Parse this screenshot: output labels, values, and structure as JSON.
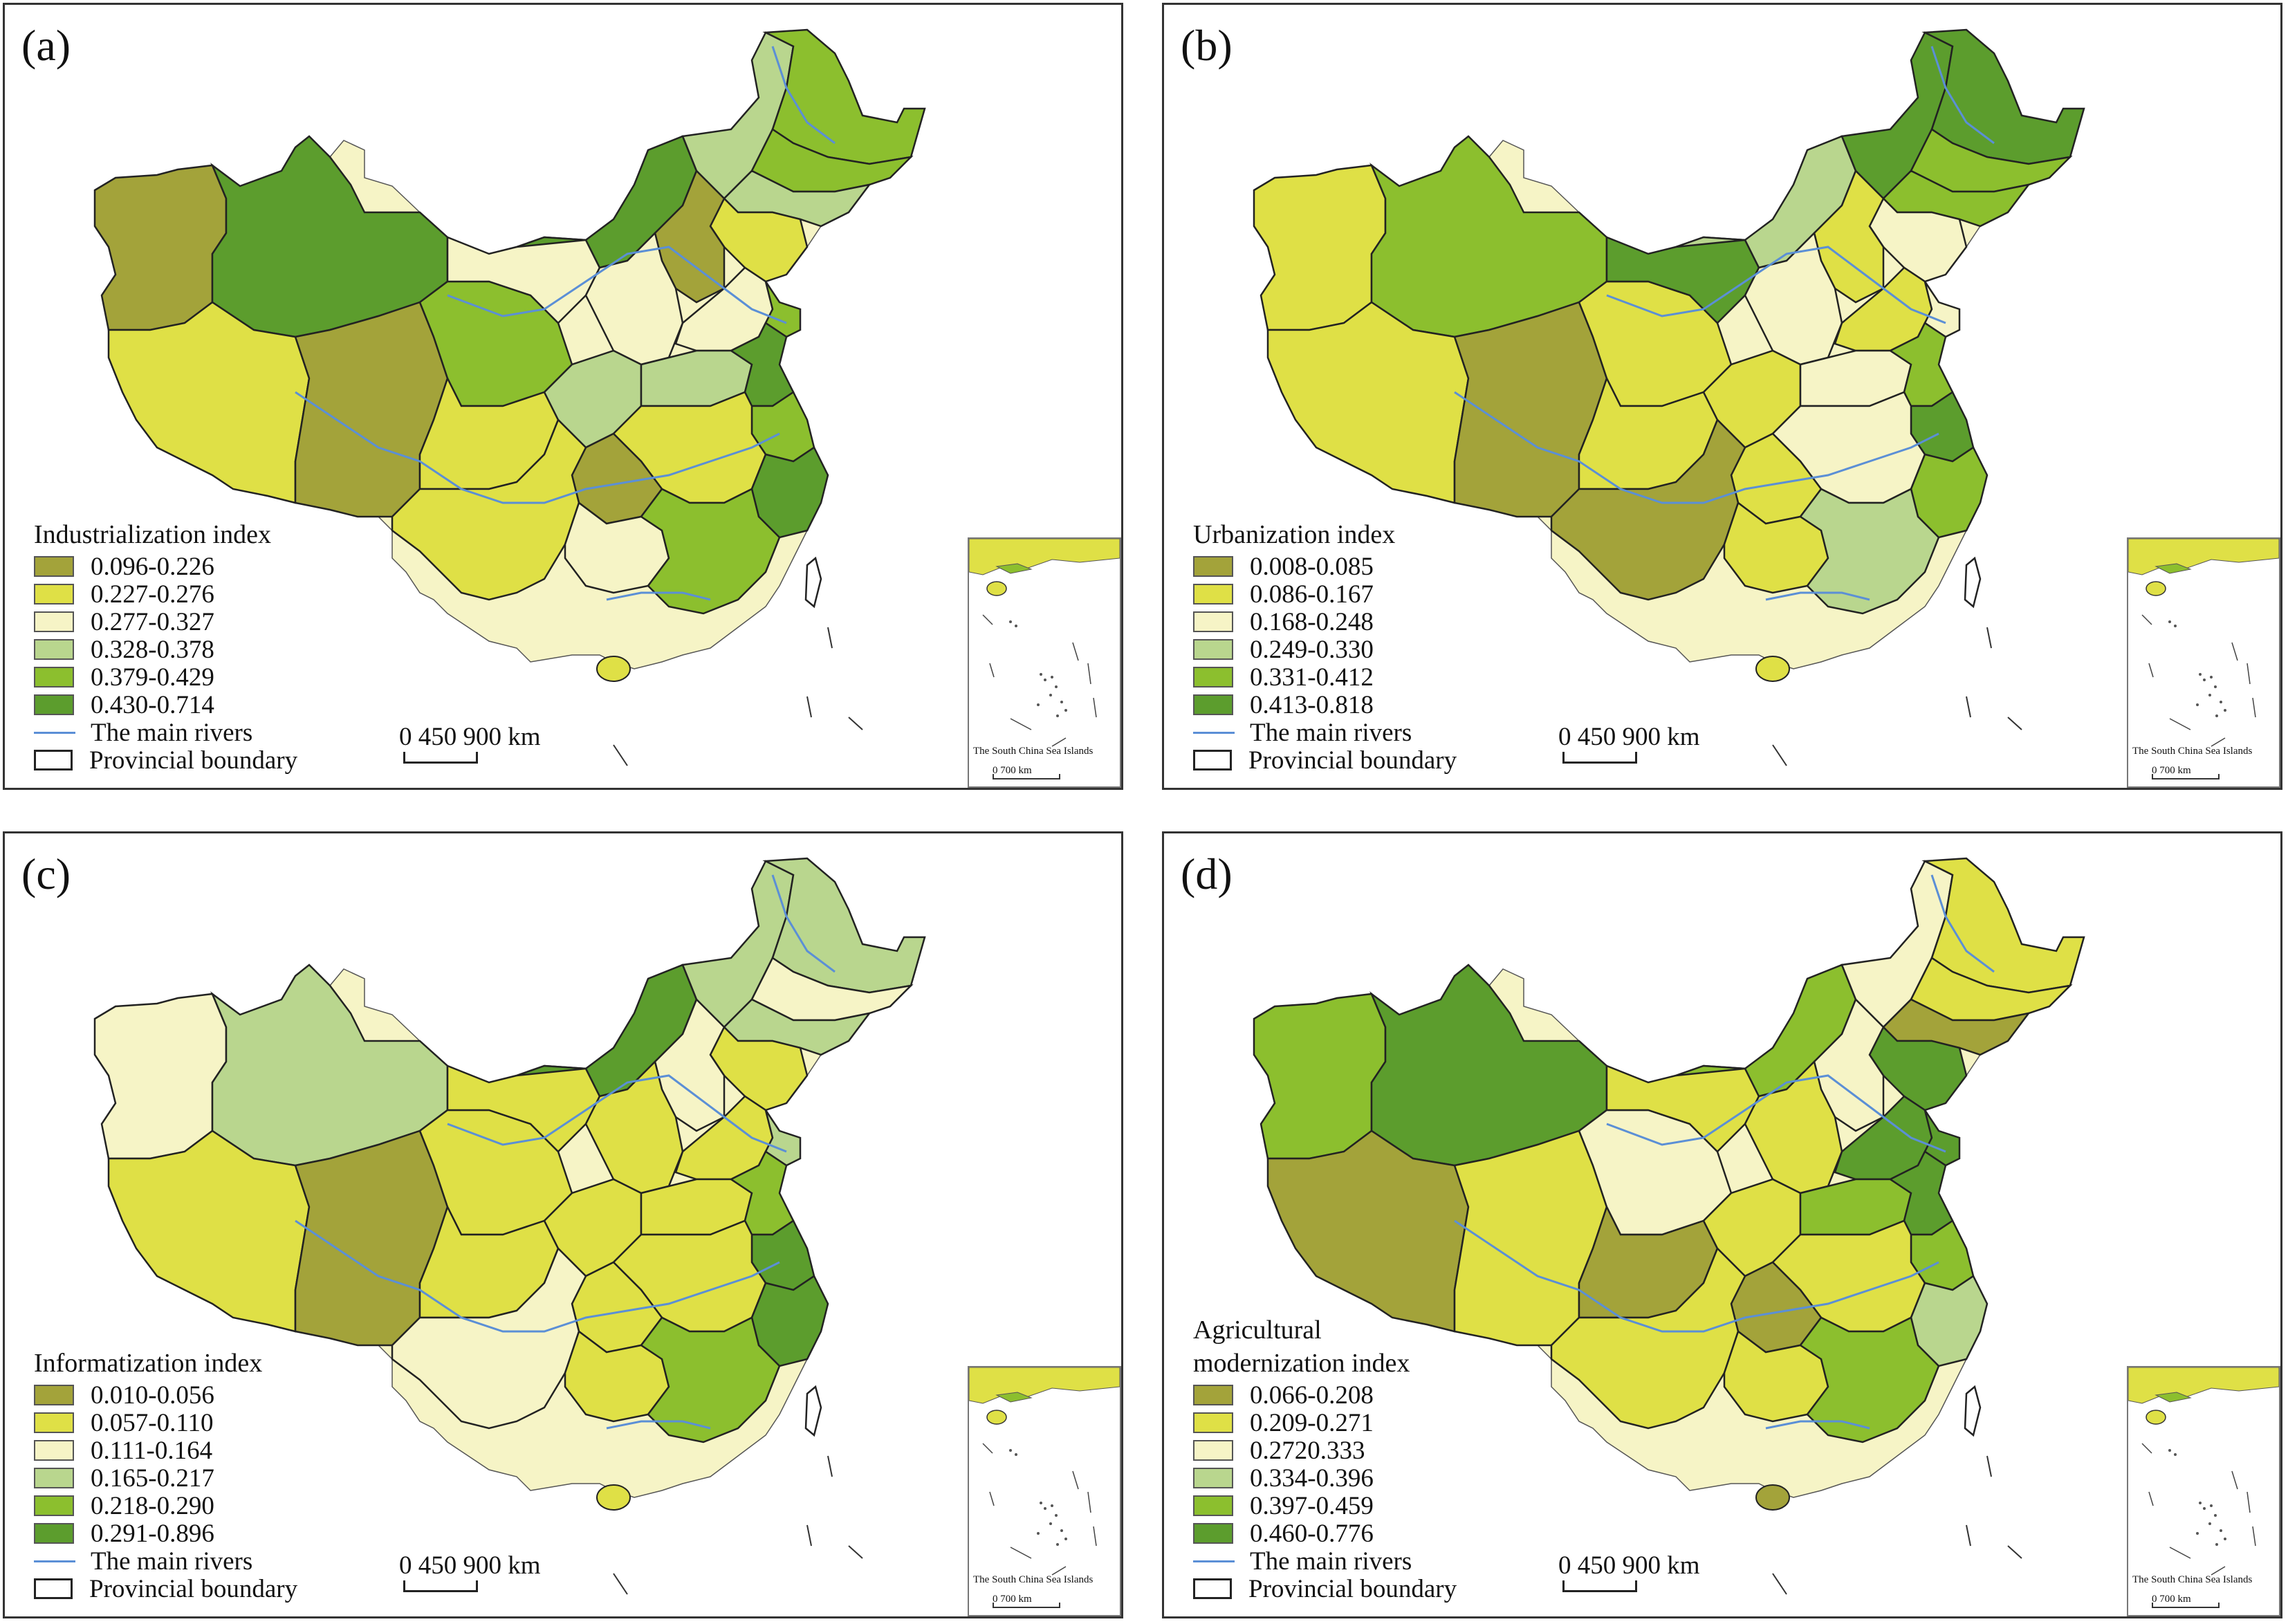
{
  "colors": {
    "c1": "#a3a33a",
    "c2": "#dfe046",
    "c3": "#f6f4c6",
    "c4": "#b9d68e",
    "c5": "#8cbf2e",
    "c6": "#5c9d2d",
    "river": "#5b8fd6",
    "boundary": "#222222"
  },
  "common": {
    "rivers_label": "The main rivers",
    "boundary_label": "Provincial boundary",
    "scale_label": "0  450 900 km",
    "inset_caption": "The South China Sea Islands",
    "inset_scale": "0       700 km"
  },
  "panels": [
    {
      "label": "(a)",
      "legend_title": "Industrialization index",
      "legend_title_2": "",
      "ranges": [
        "0.096-0.226",
        "0.227-0.276",
        "0.277-0.327",
        "0.328-0.378",
        "0.379-0.429",
        "0.430-0.714"
      ]
    },
    {
      "label": "(b)",
      "legend_title": "Urbanization index",
      "legend_title_2": "",
      "ranges": [
        "0.008-0.085",
        "0.086-0.167",
        "0.168-0.248",
        "0.249-0.330",
        "0.331-0.412",
        "0.413-0.818"
      ]
    },
    {
      "label": "(c)",
      "legend_title": "Informatization index",
      "legend_title_2": "",
      "ranges": [
        "0.010-0.056",
        "0.057-0.110",
        "0.111-0.164",
        "0.165-0.217",
        "0.218-0.290",
        "0.291-0.896"
      ]
    },
    {
      "label": "(d)",
      "legend_title": "Agricultural",
      "legend_title_2": "modernization index",
      "ranges": [
        "0.066-0.208",
        "0.209-0.271",
        "0.2720.333",
        "0.334-0.396",
        "0.397-0.459",
        "0.460-0.776"
      ]
    }
  ]
}
